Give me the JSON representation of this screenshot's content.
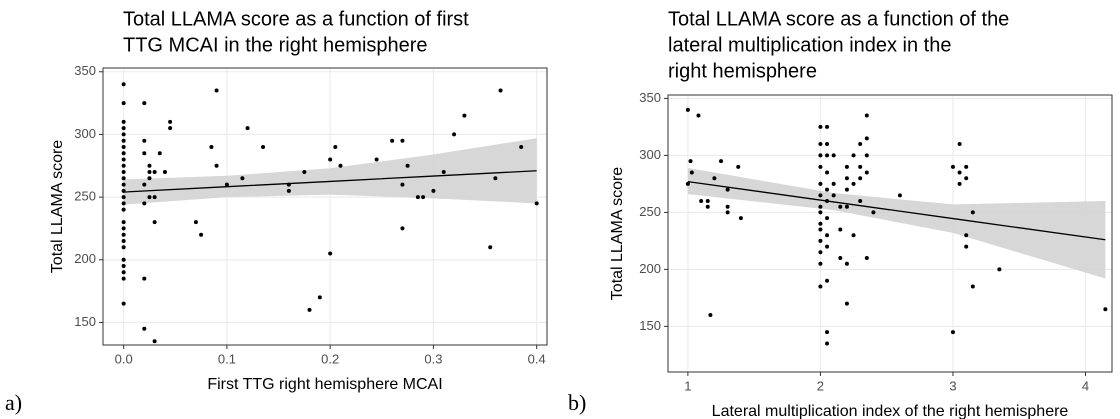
{
  "chart_data": [
    {
      "type": "scatter",
      "label": "a)",
      "title": [
        "Total LLAMA score as a function of first",
        "TTG MCAI in the right hemisphere"
      ],
      "x_label": "First TTG right hemisphere MCAI",
      "y_label": "Total LLAMA score",
      "xlim": [
        -0.02,
        0.41
      ],
      "ylim": [
        132,
        353
      ],
      "xticks": [
        {
          "value": 0,
          "label": "0.0"
        },
        0.1,
        0.2,
        0.3,
        0.4
      ],
      "yticks": [
        150,
        200,
        250,
        300,
        350
      ],
      "grid": true,
      "color": "#000000",
      "band_color": "#d3d3d3",
      "x": [
        0,
        0,
        0,
        0,
        0,
        0,
        0,
        0,
        0,
        0,
        0,
        0,
        0,
        0,
        0,
        0,
        0,
        0,
        0,
        0,
        0,
        0,
        0,
        0,
        0,
        0,
        0,
        0.02,
        0.02,
        0.02,
        0.02,
        0.02,
        0.025,
        0.025,
        0.025,
        0.02,
        0.03,
        0.025,
        0.02,
        0.03,
        0.035,
        0.03,
        0.04,
        0.045,
        0.045,
        0.03,
        0.07,
        0.075,
        0.085,
        0.09,
        0.09,
        0.1,
        0.115,
        0.12,
        0.135,
        0.16,
        0.16,
        0.175,
        0.18,
        0.19,
        0.2,
        0.2,
        0.205,
        0.21,
        0.245,
        0.26,
        0.27,
        0.27,
        0.27,
        0.275,
        0.285,
        0.29,
        0.3,
        0.31,
        0.32,
        0.33,
        0.355,
        0.36,
        0.365,
        0.385,
        0.4
      ],
      "y": [
        340,
        325,
        310,
        305,
        300,
        295,
        290,
        285,
        280,
        275,
        270,
        265,
        260,
        255,
        250,
        245,
        240,
        230,
        225,
        220,
        215,
        210,
        200,
        195,
        190,
        185,
        165,
        145,
        185,
        325,
        295,
        285,
        275,
        270,
        265,
        260,
        250,
        250,
        245,
        230,
        285,
        270,
        270,
        310,
        305,
        135,
        230,
        220,
        290,
        335,
        275,
        260,
        265,
        305,
        290,
        255,
        260,
        270,
        160,
        170,
        280,
        205,
        290,
        275,
        280,
        295,
        295,
        260,
        225,
        275,
        250,
        250,
        255,
        270,
        300,
        315,
        210,
        265,
        335,
        290,
        245
      ],
      "fit": {
        "x": [
          0,
          0.1,
          0.2,
          0.3,
          0.4
        ],
        "y": [
          254,
          258.3,
          262.5,
          266.8,
          271
        ],
        "lower": [
          244,
          250,
          252,
          249,
          245
        ],
        "upper": [
          264,
          267,
          273,
          284,
          297
        ]
      }
    },
    {
      "type": "scatter",
      "label": "b)",
      "title": [
        "Total LLAMA score as a function of the",
        "lateral multiplication index in the",
        "right hemisphere"
      ],
      "x_label": "Lateral multiplication index of the right hemisphere",
      "y_label": "Total LLAMA score",
      "xlim": [
        0.85,
        4.2
      ],
      "ylim": [
        110,
        353
      ],
      "xticks": [
        1,
        2,
        3,
        4
      ],
      "yticks": [
        150,
        200,
        250,
        300,
        350
      ],
      "grid": true,
      "color": "#000000",
      "band_color": "#d3d3d3",
      "x": [
        1,
        1.02,
        1.03,
        1,
        1.08,
        1.1,
        1.15,
        1.15,
        1.2,
        1.17,
        1.25,
        1.3,
        1.3,
        1.3,
        1.38,
        1.4,
        2,
        2.05,
        2,
        2.05,
        2,
        2.05,
        2,
        2.05,
        2,
        2.05,
        2,
        2.05,
        2,
        2,
        2.05,
        2,
        2,
        2.05,
        2,
        2.05,
        2,
        2,
        2.05,
        2,
        2.05,
        2.05,
        2.1,
        2.1,
        2.1,
        2.15,
        2.15,
        2.15,
        2.2,
        2.2,
        2.2,
        2.2,
        2.25,
        2.25,
        2.2,
        2.2,
        2.3,
        2.3,
        2.3,
        2.3,
        2.25,
        2.35,
        2.35,
        2.35,
        2.35,
        2.35,
        2.4,
        2.6,
        3,
        3.05,
        3.05,
        3.1,
        3.05,
        3.1,
        3.1,
        3.1,
        3.15,
        3.15,
        3,
        3.35,
        4.15
      ],
      "y": [
        340,
        295,
        285,
        275,
        335,
        260,
        255,
        260,
        280,
        160,
        295,
        270,
        255,
        250,
        290,
        245,
        325,
        325,
        310,
        310,
        300,
        300,
        290,
        285,
        275,
        270,
        265,
        260,
        255,
        250,
        245,
        240,
        235,
        230,
        225,
        220,
        215,
        205,
        190,
        185,
        145,
        135,
        300,
        275,
        265,
        255,
        235,
        210,
        290,
        280,
        270,
        255,
        300,
        275,
        205,
        170,
        310,
        290,
        280,
        260,
        230,
        335,
        315,
        300,
        285,
        210,
        250,
        265,
        290,
        310,
        285,
        280,
        275,
        290,
        230,
        220,
        250,
        185,
        145,
        200,
        165
      ],
      "fit": {
        "x": [
          1,
          2.1,
          3,
          4.15
        ],
        "y": [
          277,
          259.2,
          244.6,
          226
        ],
        "lower": [
          266,
          252,
          232,
          192
        ],
        "upper": [
          289,
          267,
          257,
          260
        ]
      }
    }
  ]
}
